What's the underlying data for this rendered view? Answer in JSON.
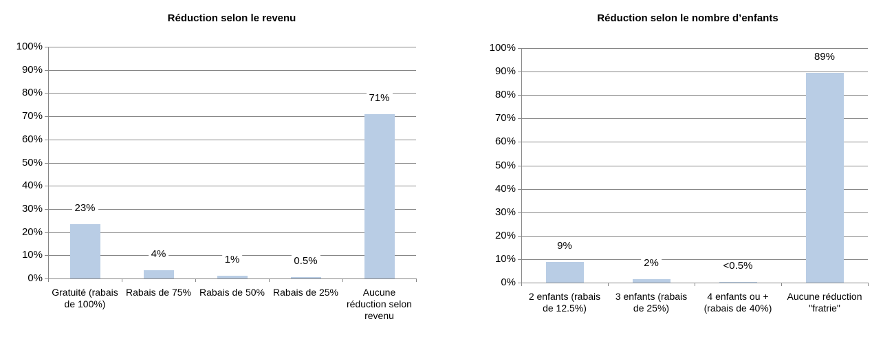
{
  "chart_data": [
    {
      "type": "bar",
      "title": "Réduction selon le revenu",
      "categories": [
        "Gratuité (rabais de 100%)",
        "Rabais de 75%",
        "Rabais de 50%",
        "Rabais de 25%",
        "Aucune réduction selon revenu"
      ],
      "values": [
        23.4,
        3.6,
        1.3,
        0.5,
        71
      ],
      "value_labels": [
        "23%",
        "4%",
        "1%",
        "0.5%",
        "71%"
      ],
      "color": "#b9cde5",
      "ylim": [
        0,
        100
      ],
      "yticks": [
        {
          "value": 0,
          "label": "0%"
        },
        {
          "value": 10,
          "label": "10%"
        },
        {
          "value": 20,
          "label": "20%"
        },
        {
          "value": 30,
          "label": "30%"
        },
        {
          "value": 40,
          "label": "40%"
        },
        {
          "value": 50,
          "label": "50%"
        },
        {
          "value": 60,
          "label": "60%"
        },
        {
          "value": 70,
          "label": "70%"
        },
        {
          "value": 80,
          "label": "80%"
        },
        {
          "value": 90,
          "label": "90%"
        },
        {
          "value": 100,
          "label": "100%"
        }
      ],
      "grid": true
    },
    {
      "type": "bar",
      "title": "Réduction selon le nombre d’enfants",
      "categories": [
        "2 enfants (rabais de 12.5%)",
        "3 enfants (rabais de 25%)",
        "4 enfants ou + (rabais de 40%)",
        "Aucune réduction \"fratrie\""
      ],
      "values": [
        8.8,
        1.5,
        0.3,
        89.3
      ],
      "value_labels": [
        "9%",
        "2%",
        "<0.5%",
        "89%"
      ],
      "color": "#b9cde5",
      "ylim": [
        0,
        100
      ],
      "yticks": [
        {
          "value": 0,
          "label": "0%"
        },
        {
          "value": 10,
          "label": "10%"
        },
        {
          "value": 20,
          "label": "20%"
        },
        {
          "value": 30,
          "label": "30%"
        },
        {
          "value": 40,
          "label": "40%"
        },
        {
          "value": 50,
          "label": "50%"
        },
        {
          "value": 60,
          "label": "60%"
        },
        {
          "value": 70,
          "label": "70%"
        },
        {
          "value": 80,
          "label": "80%"
        },
        {
          "value": 90,
          "label": "90%"
        },
        {
          "value": 100,
          "label": "100%"
        }
      ],
      "grid": true
    }
  ]
}
